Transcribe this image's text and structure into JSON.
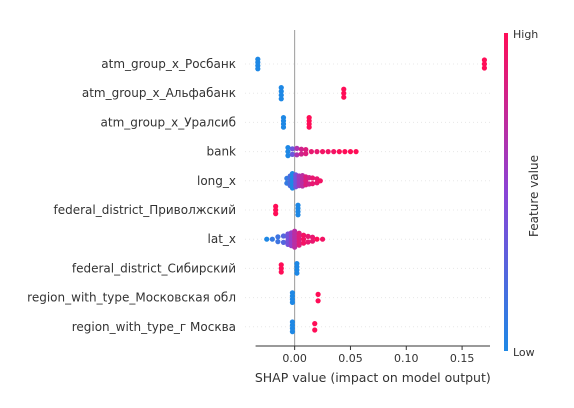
{
  "chart_data": {
    "type": "scatter",
    "subtype": "shap_beeswarm",
    "xlabel": "SHAP value (impact on model output)",
    "x_ticks": [
      0.0,
      0.05,
      0.1,
      0.15
    ],
    "x_tick_labels": [
      "0.00",
      "0.05",
      "0.10",
      "0.15"
    ],
    "xlim": [
      -0.04,
      0.175
    ],
    "colorbar": {
      "label": "Feature value",
      "high": "High",
      "low": "Low",
      "low_color": "#1e88e5",
      "high_color": "#ff0d57"
    },
    "features": [
      {
        "name": "atm_group_x_Росбанк",
        "points": [
          [
            -0.033,
            0,
            1.2
          ],
          [
            0.17,
            1,
            1
          ]
        ]
      },
      {
        "name": "atm_group_x_Альфабанк",
        "points": [
          [
            -0.012,
            0,
            1.4
          ],
          [
            0.044,
            1,
            1
          ]
        ]
      },
      {
        "name": "atm_group_x_Уралсиб",
        "points": [
          [
            -0.01,
            0,
            1.2
          ],
          [
            0.013,
            1,
            1.2
          ]
        ]
      },
      {
        "name": "bank",
        "points": [
          [
            -0.006,
            0,
            1.0
          ],
          [
            -0.002,
            0.35,
            0.7
          ],
          [
            0.002,
            0.65,
            0.8
          ],
          [
            0.006,
            0.8,
            0.6
          ],
          [
            0.01,
            0.85,
            0.5
          ],
          [
            0.015,
            0.9,
            0.3
          ],
          [
            0.02,
            0.9,
            0.2
          ],
          [
            0.025,
            0.95,
            0.15
          ],
          [
            0.03,
            0.95,
            0.1
          ],
          [
            0.035,
            0.95,
            0.1
          ],
          [
            0.04,
            1,
            0.1
          ],
          [
            0.045,
            1,
            0.1
          ],
          [
            0.05,
            1,
            0.1
          ],
          [
            0.055,
            1,
            0.1
          ]
        ]
      },
      {
        "name": "long_x",
        "points": [
          [
            -0.007,
            0.1,
            0.6
          ],
          [
            -0.004,
            0.2,
            1.2
          ],
          [
            -0.002,
            0.0,
            1.8
          ],
          [
            0.001,
            0.4,
            1.5
          ],
          [
            0.004,
            0.6,
            1.2
          ],
          [
            0.007,
            0.7,
            1.3
          ],
          [
            0.01,
            0.85,
            1.0
          ],
          [
            0.013,
            0.8,
            0.8
          ],
          [
            0.016,
            0.9,
            0.7
          ],
          [
            0.02,
            0.9,
            0.5
          ],
          [
            0.023,
            0.95,
            0.35
          ]
        ]
      },
      {
        "name": "federal_district_Приволжский",
        "points": [
          [
            -0.017,
            1,
            0.9
          ],
          [
            0.003,
            0,
            1.2
          ]
        ]
      },
      {
        "name": "lat_x",
        "points": [
          [
            -0.025,
            0.0,
            0.25
          ],
          [
            -0.02,
            0.1,
            0.4
          ],
          [
            -0.015,
            0.15,
            0.6
          ],
          [
            -0.01,
            0.25,
            0.8
          ],
          [
            -0.006,
            0.4,
            1.3
          ],
          [
            -0.003,
            0.55,
            1.6
          ],
          [
            0.0,
            0.7,
            2.0
          ],
          [
            0.004,
            0.85,
            1.5
          ],
          [
            0.008,
            0.95,
            1.0
          ],
          [
            0.012,
            0.9,
            0.7
          ],
          [
            0.016,
            0.9,
            0.5
          ],
          [
            0.02,
            1,
            0.35
          ],
          [
            0.025,
            0.95,
            0.2
          ]
        ]
      },
      {
        "name": "federal_district_Сибирский",
        "points": [
          [
            -0.012,
            1,
            0.9
          ],
          [
            0.002,
            0,
            1.2
          ]
        ]
      },
      {
        "name": "region_with_type_Московская обл",
        "points": [
          [
            -0.002,
            0,
            1.2
          ],
          [
            0.021,
            1,
            0.8
          ]
        ]
      },
      {
        "name": "region_with_type_г Москва",
        "points": [
          [
            -0.002,
            0,
            1.2
          ],
          [
            0.018,
            1,
            0.8
          ]
        ]
      }
    ]
  }
}
